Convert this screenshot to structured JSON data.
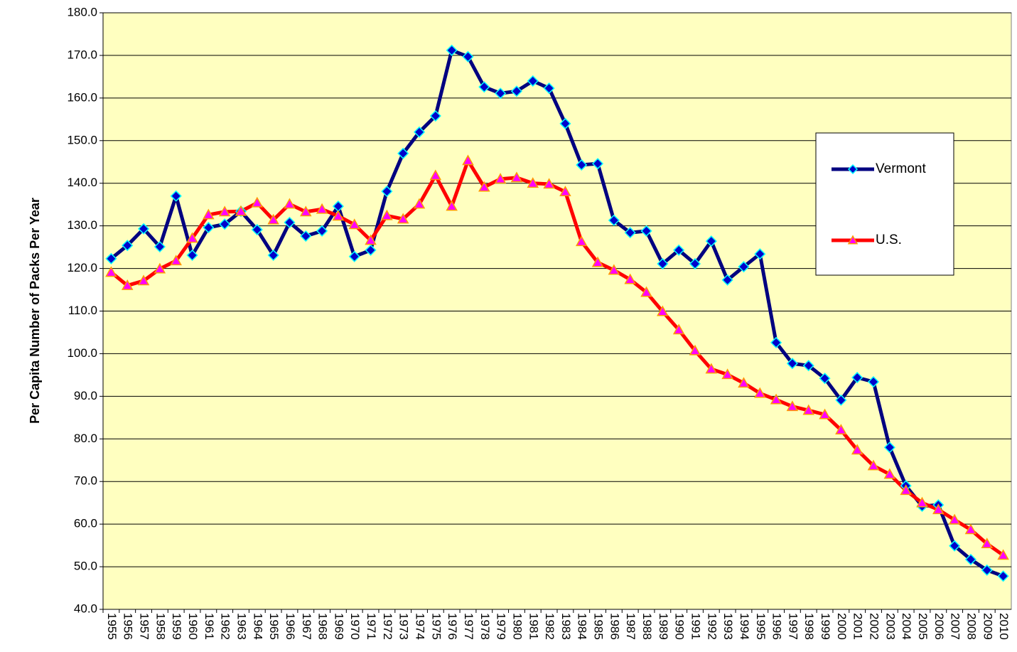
{
  "chart_data": {
    "type": "line",
    "y_label": "Per Capita Number of Packs Per Year",
    "categories": [
      "1955",
      "1956",
      "1957",
      "1958",
      "1959",
      "1960",
      "1961",
      "1962",
      "1963",
      "1964",
      "1965",
      "1966",
      "1967",
      "1968",
      "1969",
      "1970",
      "1971",
      "1972",
      "1973",
      "1974",
      "1975",
      "1976",
      "1977",
      "1978",
      "1979",
      "1980",
      "1981",
      "1982",
      "1983",
      "1984",
      "1985",
      "1986",
      "1987",
      "1988",
      "1989",
      "1990",
      "1991",
      "1992",
      "1993",
      "1994",
      "1995",
      "1996",
      "1997",
      "1998",
      "1999",
      "2000",
      "2001",
      "2002",
      "2003",
      "2004",
      "2005",
      "2006",
      "2007",
      "2008",
      "2009",
      "2010"
    ],
    "series": [
      {
        "name": "Vermont",
        "color": "#000080",
        "marker_color": "#0000cc",
        "marker_edge": "#00ffff",
        "marker": "diamond",
        "values": [
          122.3,
          125.4,
          129.3,
          125.1,
          137.0,
          123.1,
          129.6,
          130.4,
          133.4,
          129.1,
          123.1,
          130.8,
          127.6,
          128.8,
          134.6,
          122.8,
          124.3,
          138.1,
          147.0,
          152.0,
          155.8,
          171.2,
          169.7,
          162.6,
          161.1,
          161.6,
          164.0,
          162.3,
          154.0,
          144.3,
          144.6,
          131.3,
          128.4,
          128.8,
          121.1,
          124.3,
          121.1,
          126.4,
          117.3,
          120.4,
          123.4,
          102.6,
          97.7,
          97.2,
          94.2,
          89.1,
          94.4,
          93.4,
          78.0,
          69.0,
          64.2,
          64.5,
          54.9,
          51.7,
          49.2,
          47.8
        ]
      },
      {
        "name": "U.S.",
        "color": "#ff0000",
        "marker_color": "#ff00ff",
        "marker_edge": "#ff9900",
        "marker": "triangle",
        "values": [
          119.1,
          116.0,
          117.1,
          119.9,
          121.8,
          127.1,
          132.6,
          133.3,
          133.4,
          135.4,
          131.4,
          135.1,
          133.3,
          133.9,
          132.3,
          130.3,
          126.6,
          132.4,
          131.6,
          135.1,
          141.8,
          134.6,
          145.3,
          139.1,
          141.0,
          141.3,
          140.0,
          139.8,
          138.0,
          126.3,
          121.4,
          119.6,
          117.4,
          114.4,
          109.9,
          105.6,
          100.7,
          96.4,
          95.1,
          93.1,
          90.7,
          89.2,
          87.6,
          86.7,
          85.7,
          82.1,
          77.4,
          73.7,
          71.7,
          67.9,
          65.0,
          63.4,
          61.0,
          58.7,
          55.4,
          52.7
        ]
      }
    ],
    "ylim": [
      40,
      180
    ],
    "yticks": [
      {
        "value": 40,
        "label": "40.0"
      },
      {
        "value": 50,
        "label": "50.0"
      },
      {
        "value": 60,
        "label": "60.0"
      },
      {
        "value": 70,
        "label": "70.0"
      },
      {
        "value": 80,
        "label": "80.0"
      },
      {
        "value": 90,
        "label": "90.0"
      },
      {
        "value": 100,
        "label": "100.0"
      },
      {
        "value": 110,
        "label": "110.0"
      },
      {
        "value": 120,
        "label": "120.0"
      },
      {
        "value": 130,
        "label": "130.0"
      },
      {
        "value": 140,
        "label": "140.0"
      },
      {
        "value": 150,
        "label": "150.0"
      },
      {
        "value": 160,
        "label": "160.0"
      },
      {
        "value": 170,
        "label": "170.0"
      },
      {
        "value": 180,
        "label": "180.0"
      }
    ],
    "grid": true,
    "plot_background": "#ffffc0",
    "legend": "right"
  }
}
